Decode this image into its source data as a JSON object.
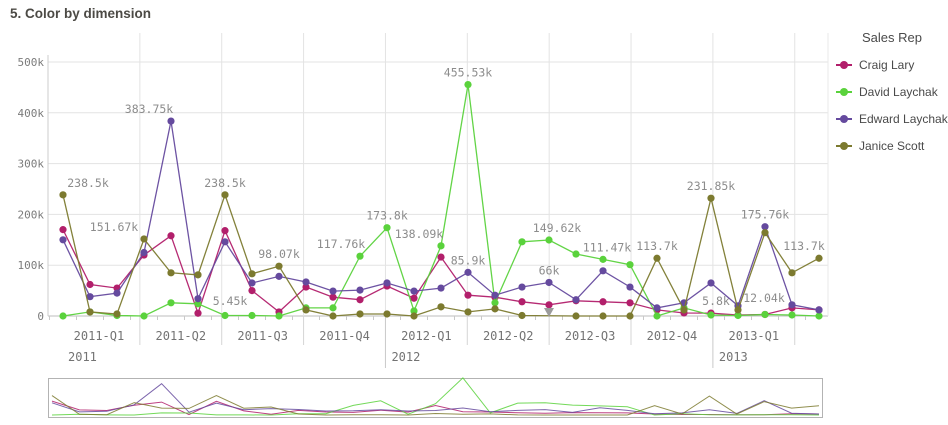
{
  "title": "5. Color by dimension",
  "legend": {
    "title": "Sales Rep",
    "items": [
      {
        "label": "Craig Lary",
        "color": "#b21f6b"
      },
      {
        "label": "David Laychak",
        "color": "#5ad23c"
      },
      {
        "label": "Edward Laychak",
        "color": "#654a9e"
      },
      {
        "label": "Janice Scott",
        "color": "#7c7a2f"
      }
    ]
  },
  "chart_data": {
    "type": "line",
    "title": "5. Color by dimension",
    "legend_title": "Sales Rep",
    "legend_position": "right",
    "grid": true,
    "x_months": [
      "2011-01",
      "2011-02",
      "2011-03",
      "2011-04",
      "2011-05",
      "2011-06",
      "2011-07",
      "2011-08",
      "2011-09",
      "2011-10",
      "2011-11",
      "2011-12",
      "2012-01",
      "2012-02",
      "2012-03",
      "2012-04",
      "2012-05",
      "2012-06",
      "2012-07",
      "2012-08",
      "2012-09",
      "2012-10",
      "2012-11",
      "2012-12",
      "2013-01",
      "2013-02",
      "2013-03",
      "2013-04",
      "2013-05"
    ],
    "x_axis": {
      "quarter_labels": [
        "2011-Q1",
        "2011-Q2",
        "2011-Q3",
        "2011-Q4",
        "2012-Q1",
        "2012-Q2",
        "2012-Q3",
        "2012-Q4",
        "2013-Q1"
      ],
      "year_labels": [
        "2011",
        "2012",
        "2013"
      ]
    },
    "y_axis": {
      "tick_labels": [
        "0",
        "100k",
        "200k",
        "300k",
        "400k",
        "500k"
      ],
      "tick_values": [
        0,
        100000,
        200000,
        300000,
        400000,
        500000
      ],
      "range": [
        0,
        500000
      ]
    },
    "series": [
      {
        "name": "Craig Lary",
        "color": "#b21f6b",
        "values": [
          170000,
          62000,
          55000,
          120000,
          158000,
          5450,
          168000,
          50000,
          8000,
          57000,
          37000,
          32000,
          59000,
          35000,
          116000,
          41000,
          37000,
          28000,
          22000,
          30000,
          28000,
          26000,
          12000,
          6000,
          5800,
          2000,
          3000,
          16000,
          12000
        ]
      },
      {
        "name": "David Laychak",
        "color": "#5ad23c",
        "values": [
          0,
          8000,
          1000,
          0,
          26000,
          24000,
          1000,
          1000,
          0,
          16000,
          16000,
          117760,
          173800,
          10000,
          138090,
          455530,
          26000,
          146000,
          149620,
          122000,
          111470,
          101000,
          0,
          16000,
          2000,
          1000,
          3000,
          2000,
          0
        ]
      },
      {
        "name": "Edward Laychak",
        "color": "#654a9e",
        "values": [
          150000,
          38000,
          45000,
          125000,
          383750,
          34000,
          146000,
          65000,
          78000,
          67000,
          49000,
          51000,
          65000,
          49000,
          55000,
          85900,
          41000,
          57000,
          66000,
          32000,
          89000,
          57000,
          16000,
          26000,
          65000,
          20000,
          175760,
          22000,
          12000
        ]
      },
      {
        "name": "Janice Scott",
        "color": "#7c7a2f",
        "values": [
          238500,
          8000,
          4000,
          151670,
          85000,
          81000,
          238500,
          83000,
          98070,
          12000,
          0,
          4000,
          4000,
          0,
          18000,
          8000,
          14000,
          1000,
          null,
          0,
          0,
          0,
          113700,
          12000,
          231850,
          12040,
          164000,
          85000,
          113700
        ]
      }
    ],
    "point_labels": [
      {
        "series": "Janice Scott",
        "index": 0,
        "text": "238.5k",
        "dx": 25
      },
      {
        "series": "Janice Scott",
        "index": 3,
        "text": "151.67k",
        "dx": -30
      },
      {
        "series": "Edward Laychak",
        "index": 4,
        "text": "383.75k",
        "dx": -22
      },
      {
        "series": "Craig Lary",
        "index": 5,
        "text": "5.45k",
        "dx": 32
      },
      {
        "series": "Janice Scott",
        "index": 6,
        "text": "238.5k",
        "dx": 0
      },
      {
        "series": "Janice Scott",
        "index": 8,
        "text": "98.07k",
        "dx": 0
      },
      {
        "series": "David Laychak",
        "index": 11,
        "text": "117.76k",
        "dx": -19
      },
      {
        "series": "David Laychak",
        "index": 12,
        "text": "173.8k",
        "dx": 0
      },
      {
        "series": "David Laychak",
        "index": 14,
        "text": "138.09k",
        "dx": -22
      },
      {
        "series": "David Laychak",
        "index": 15,
        "text": "455.53k",
        "dx": 0
      },
      {
        "series": "Edward Laychak",
        "index": 15,
        "text": "85.9k",
        "dx": 0
      },
      {
        "series": "David Laychak",
        "index": 18,
        "text": "149.62k",
        "dx": 8
      },
      {
        "series": "Edward Laychak",
        "index": 18,
        "text": "66k",
        "dx": 0
      },
      {
        "series": "David Laychak",
        "index": 20,
        "text": "111.47k",
        "dx": 4
      },
      {
        "series": "Janice Scott",
        "index": 22,
        "text": "113.7k",
        "dx": 0
      },
      {
        "series": "Janice Scott",
        "index": 24,
        "text": "231.85k",
        "dx": 0
      },
      {
        "series": "Craig Lary",
        "index": 24,
        "text": "5.8k",
        "dx": 5
      },
      {
        "series": "Janice Scott",
        "index": 25,
        "text": "12.04k",
        "dx": 26
      },
      {
        "series": "Edward Laychak",
        "index": 26,
        "text": "175.76k",
        "dx": 0
      },
      {
        "series": "Janice Scott",
        "index": 28,
        "text": "113.7k",
        "dx": -15
      }
    ],
    "annotations": [
      {
        "type": "clipped-point-indicator",
        "series": "Janice Scott",
        "index": 18
      }
    ]
  }
}
